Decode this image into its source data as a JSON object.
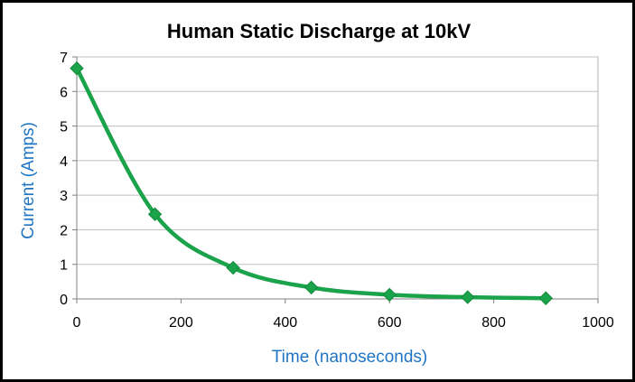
{
  "chart_data": {
    "type": "line",
    "title": "Human Static Discharge at 10kV",
    "xlabel": "Time (nanoseconds)",
    "ylabel": "Current (Amps)",
    "xlim": [
      0,
      1000
    ],
    "ylim": [
      0,
      7
    ],
    "x_ticks": [
      "0",
      "200",
      "400",
      "600",
      "800",
      "1000"
    ],
    "y_ticks": [
      "0",
      "1",
      "2",
      "3",
      "4",
      "5",
      "6",
      "7"
    ],
    "grid": "horizontal",
    "series": [
      {
        "x": [
          0,
          150,
          300,
          450,
          600,
          750,
          900
        ],
        "y": [
          6.67,
          2.45,
          0.9,
          0.33,
          0.12,
          0.05,
          0.02
        ],
        "smooth": true,
        "marker": "diamond"
      }
    ],
    "colors": {
      "series": "#1aa34a",
      "axis_title": "#1f74c4",
      "grid": "#bfbfbf",
      "plot_border": "#b0b0b0",
      "frame": "#000000"
    }
  }
}
